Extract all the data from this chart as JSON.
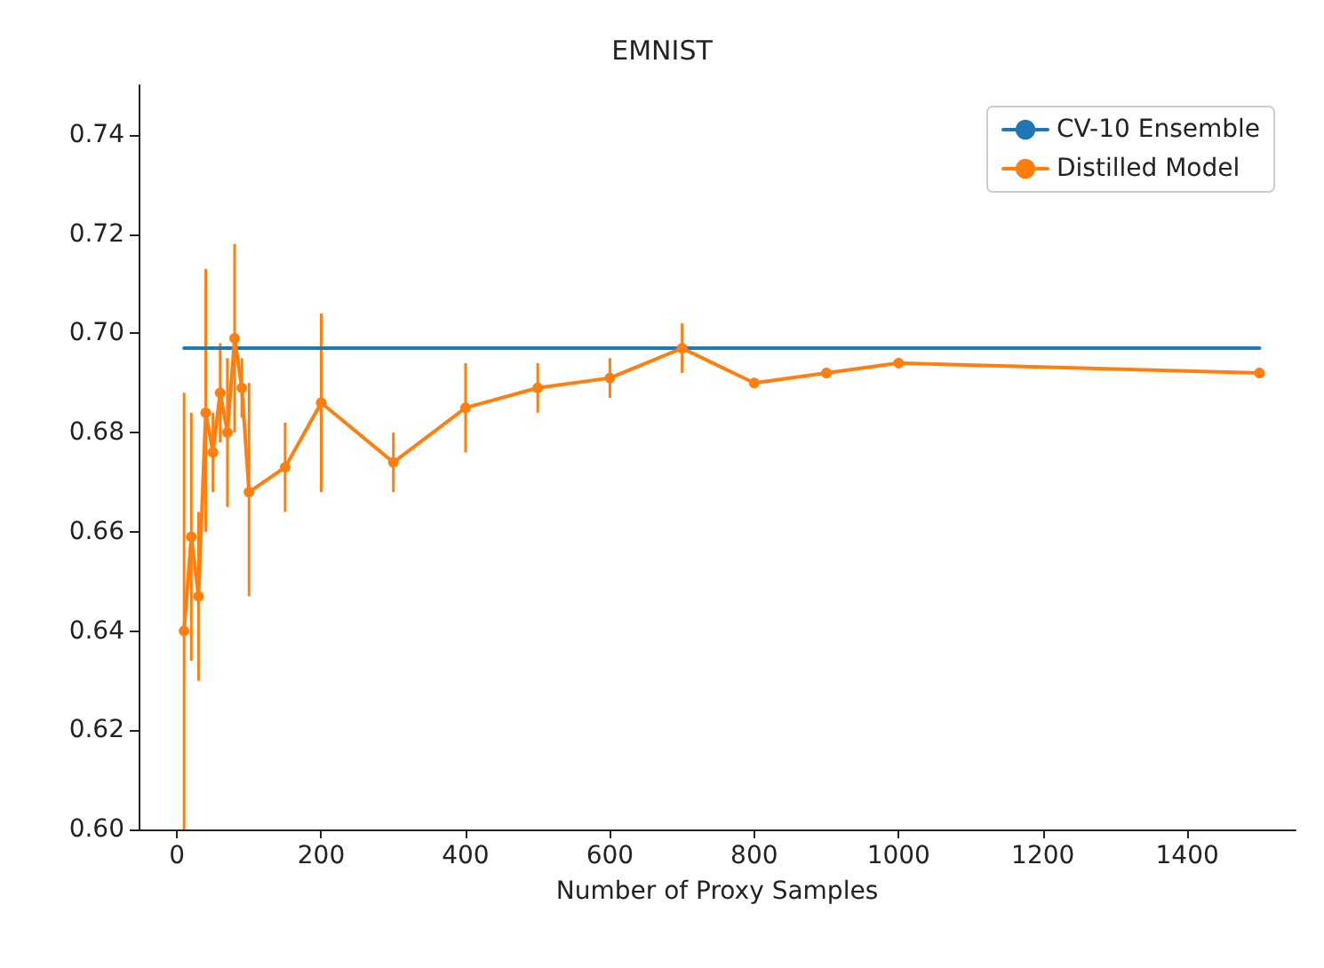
{
  "chart_data": {
    "type": "line",
    "title": "EMNIST",
    "xlabel": "Number of Proxy Samples",
    "xlim": [
      -53,
      1550
    ],
    "xticks": [
      0,
      200,
      400,
      600,
      800,
      1000,
      1200,
      1400
    ],
    "ylim": [
      0.6,
      0.75
    ],
    "yticks": [
      {
        "value": 0.6,
        "label": "0.60"
      },
      {
        "value": 0.62,
        "label": "0.62"
      },
      {
        "value": 0.64,
        "label": "0.64"
      },
      {
        "value": 0.66,
        "label": "0.66"
      },
      {
        "value": 0.68,
        "label": "0.68"
      },
      {
        "value": 0.7,
        "label": "0.70"
      },
      {
        "value": 0.72,
        "label": "0.72"
      },
      {
        "value": 0.74,
        "label": "0.74"
      }
    ],
    "grid": false,
    "legend": "top right",
    "series": [
      {
        "name": "CV-10 Ensemble",
        "color": "#1f77b4",
        "marker": "none",
        "x": [
          10,
          1500
        ],
        "values": [
          0.697,
          0.697
        ]
      },
      {
        "name": "Distilled Model",
        "color": "#ff7f0e",
        "marker": "circle",
        "x": [
          10,
          20,
          30,
          40,
          50,
          60,
          70,
          80,
          90,
          100,
          150,
          200,
          300,
          400,
          500,
          600,
          700,
          800,
          900,
          1000,
          1500
        ],
        "values": [
          0.64,
          0.659,
          0.647,
          0.684,
          0.676,
          0.688,
          0.68,
          0.699,
          0.689,
          0.668,
          0.673,
          0.686,
          0.674,
          0.685,
          0.689,
          0.691,
          0.697,
          0.69,
          0.692,
          0.694,
          0.692
        ],
        "errors": [
          [
            0.6,
            0.688
          ],
          0.025,
          [
            0.63,
            0.664
          ],
          [
            0.66,
            0.713
          ],
          0.008,
          0.01,
          0.015,
          [
            0.68,
            0.718
          ],
          0.006,
          [
            0.647,
            0.69
          ],
          0.009,
          0.018,
          0.006,
          0.009,
          0.005,
          0.004,
          0.005,
          0.001,
          0.001,
          0.001,
          0.001
        ]
      }
    ]
  }
}
